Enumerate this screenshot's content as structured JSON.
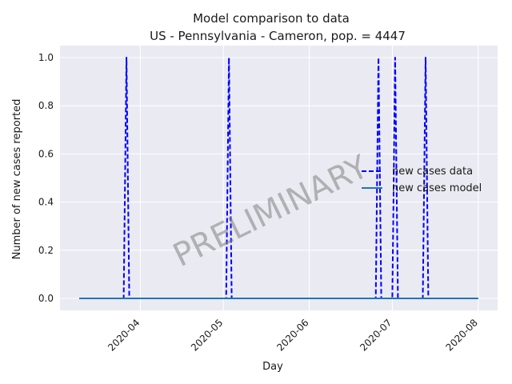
{
  "chart_data": {
    "type": "line",
    "title": "Model comparison to data",
    "subtitle": "US - Pennsylvania - Cameron, pop. = 4447",
    "xlabel": "Day",
    "ylabel": "Number of new cases reported",
    "watermark": "PRELIMINARY",
    "x_range": [
      "2020-03-10",
      "2020-08-01"
    ],
    "xlim": [
      "2020-03-03",
      "2020-08-08"
    ],
    "ylim": [
      -0.05,
      1.05
    ],
    "x_ticks": [
      "2020-04",
      "2020-05",
      "2020-06",
      "2020-07",
      "2020-08"
    ],
    "y_ticks": [
      "0.0",
      "0.2",
      "0.4",
      "0.6",
      "0.8",
      "1.0"
    ],
    "grid": true,
    "legend_position": "center-right",
    "series": [
      {
        "name": "new cases data",
        "style": "dashed",
        "color": "#0000ff",
        "points": [
          {
            "x": "2020-03-10",
            "y": 0
          },
          {
            "x": "2020-03-26",
            "y": 0
          },
          {
            "x": "2020-03-27",
            "y": 1
          },
          {
            "x": "2020-03-28",
            "y": 0
          },
          {
            "x": "2020-05-02",
            "y": 0
          },
          {
            "x": "2020-05-03",
            "y": 1
          },
          {
            "x": "2020-05-04",
            "y": 0
          },
          {
            "x": "2020-06-25",
            "y": 0
          },
          {
            "x": "2020-06-26",
            "y": 1
          },
          {
            "x": "2020-06-27",
            "y": 0
          },
          {
            "x": "2020-07-01",
            "y": 0
          },
          {
            "x": "2020-07-02",
            "y": 1
          },
          {
            "x": "2020-07-03",
            "y": 0
          },
          {
            "x": "2020-07-12",
            "y": 0
          },
          {
            "x": "2020-07-13",
            "y": 1
          },
          {
            "x": "2020-07-14",
            "y": 0
          },
          {
            "x": "2020-08-01",
            "y": 0
          }
        ]
      },
      {
        "name": "new cases model",
        "style": "solid",
        "color": "#1f77b4",
        "points": [
          {
            "x": "2020-03-10",
            "y": 0
          },
          {
            "x": "2020-08-01",
            "y": 0
          }
        ]
      }
    ]
  }
}
